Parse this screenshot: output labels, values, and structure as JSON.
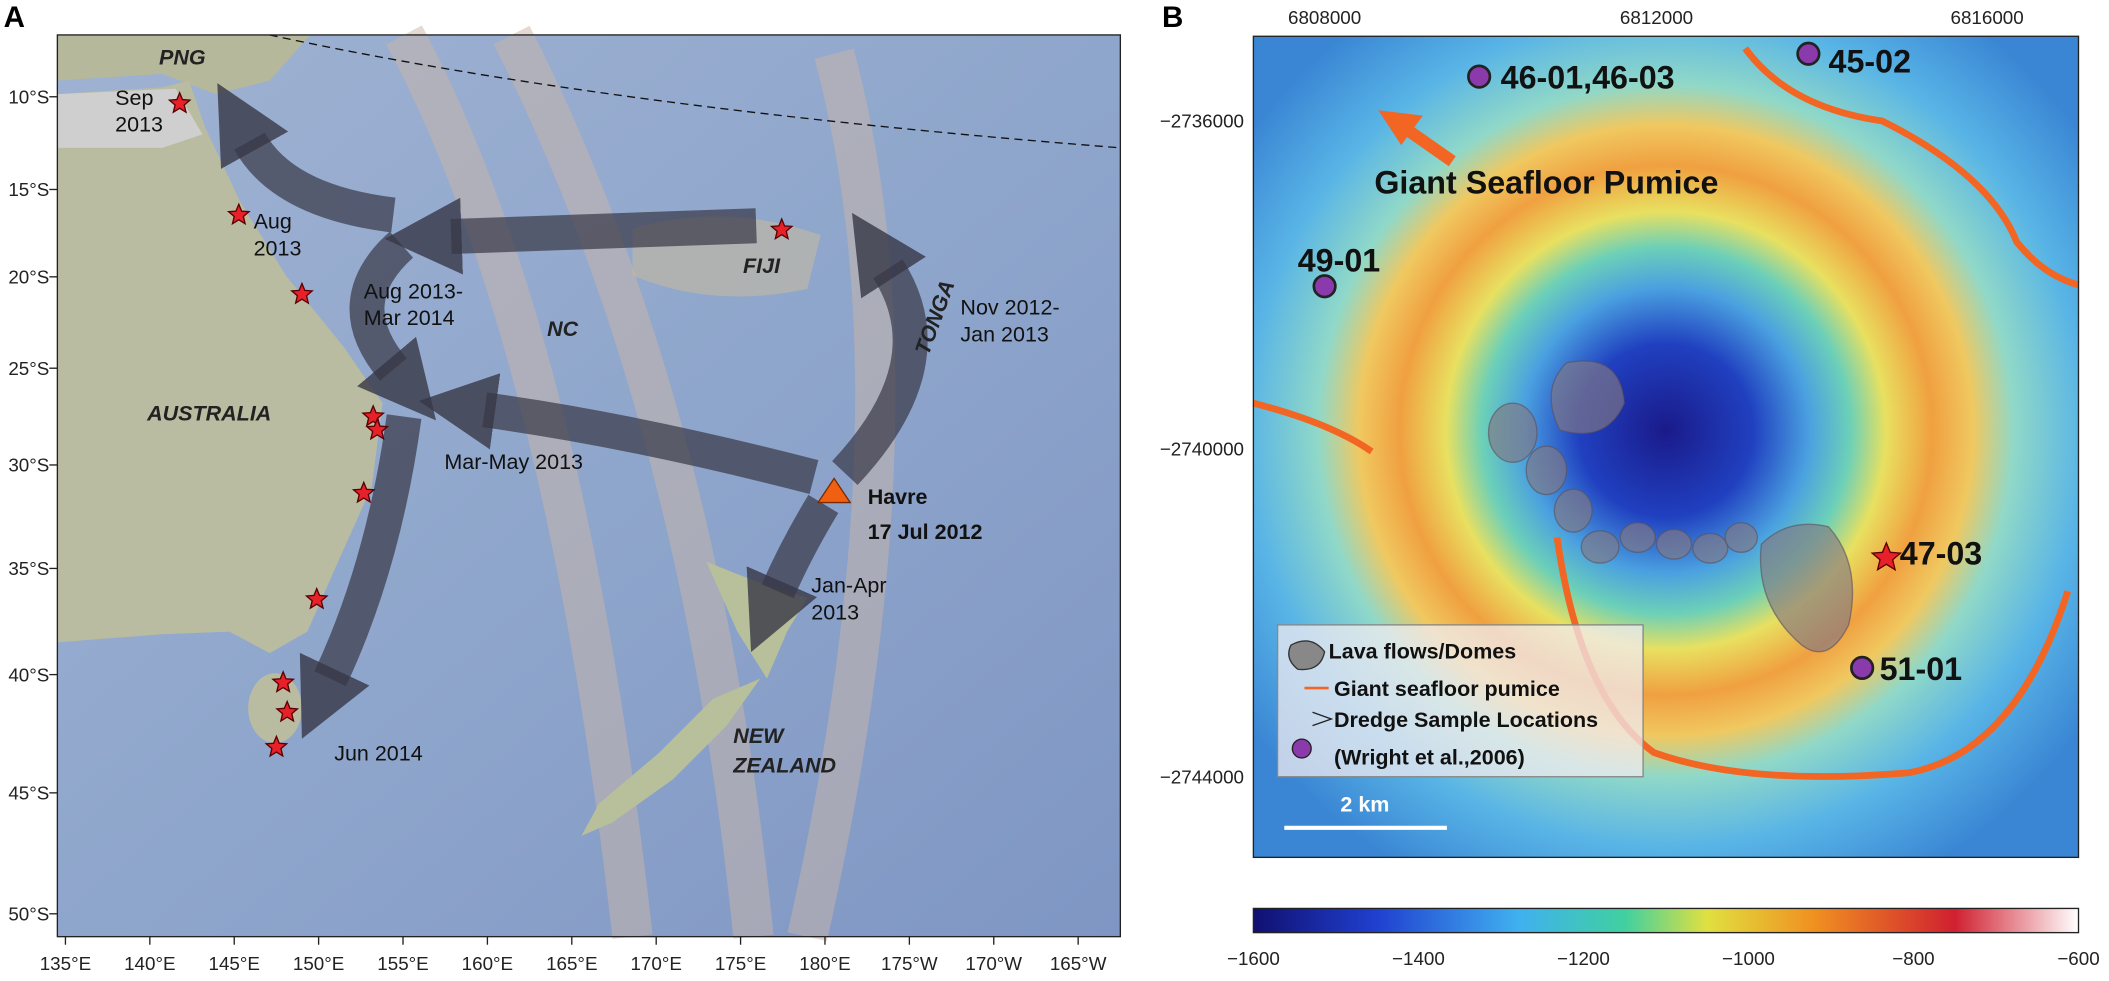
{
  "panel_a": {
    "label": "A",
    "lat_ticks": [
      "10°S",
      "15°S",
      "20°S",
      "25°S",
      "30°S",
      "35°S",
      "40°S",
      "45°S",
      "50°S"
    ],
    "lon_ticks": [
      "135°E",
      "140°E",
      "145°E",
      "150°E",
      "155°E",
      "160°E",
      "165°E",
      "170°E",
      "175°E",
      "180°E",
      "175°W",
      "170°W",
      "165°W"
    ],
    "places": [
      [
        "PNG"
      ],
      [
        "AUSTRALIA"
      ],
      [
        "NC"
      ],
      [
        "FIJI"
      ],
      [
        "TONGA"
      ],
      [
        "NEW",
        "ZEALAND"
      ]
    ],
    "dates": [
      [
        "Sep",
        "2013"
      ],
      [
        "Aug",
        "2013"
      ],
      [
        "Aug 2013-",
        "Mar 2014"
      ],
      [
        "Nov 2012-",
        "Jan 2013"
      ],
      [
        "Mar-May 2013"
      ],
      [
        "Jan-Apr",
        "2013"
      ],
      [
        "Jun 2014"
      ]
    ],
    "volcano": [
      "Havre",
      "17 Jul 2012"
    ]
  },
  "panel_b": {
    "label": "B",
    "x_ticks": [
      "6808000",
      "6812000",
      "6816000"
    ],
    "y_ticks": [
      "−2736000",
      "−2740000",
      "−2744000"
    ],
    "samples": [
      "46-01,46-03",
      "45-02",
      "49-01",
      "47-03",
      "51-01"
    ],
    "pumice_label": "Giant Seafloor Pumice",
    "scale_bar": "2 km",
    "legend": [
      "Lava flows/Domes",
      "Giant seafloor pumice",
      "Dredge Sample Locations",
      "(Wright et al.,2006)"
    ],
    "colorbar_ticks": [
      "−1600",
      "−1400",
      "−1200",
      "−1000",
      "−800",
      "−600"
    ]
  }
}
